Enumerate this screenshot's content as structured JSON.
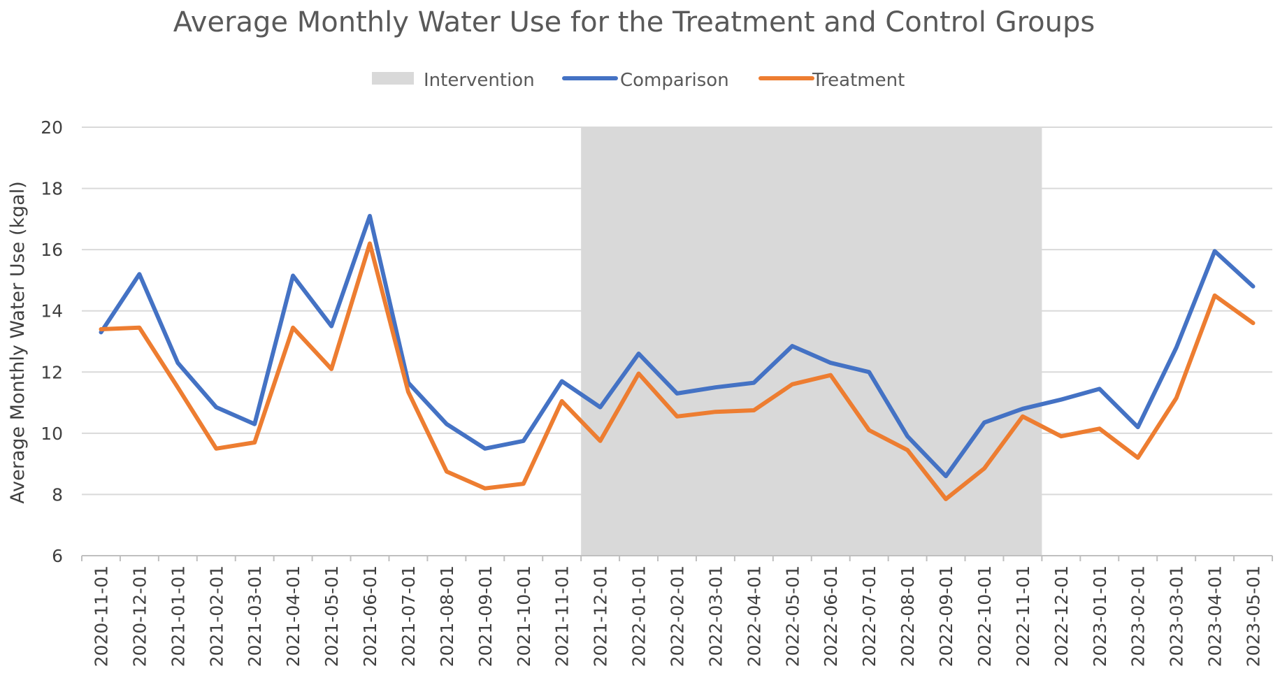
{
  "chart_data": {
    "type": "line",
    "title": "Average Monthly Water Use for the Treatment and Control Groups",
    "xlabel": "",
    "ylabel": "Average Monthly Water Use (kgal)",
    "ylim": [
      6,
      20
    ],
    "yticks": [
      6,
      8,
      10,
      12,
      14,
      16,
      18,
      20
    ],
    "grid": true,
    "legend_position": "top-center",
    "categories": [
      "2020-11-01",
      "2020-12-01",
      "2021-01-01",
      "2021-02-01",
      "2021-03-01",
      "2021-04-01",
      "2021-05-01",
      "2021-06-01",
      "2021-07-01",
      "2021-08-01",
      "2021-09-01",
      "2021-10-01",
      "2021-11-01",
      "2021-12-01",
      "2022-01-01",
      "2022-02-01",
      "2022-03-01",
      "2022-04-01",
      "2022-05-01",
      "2022-06-01",
      "2022-07-01",
      "2022-08-01",
      "2022-09-01",
      "2022-10-01",
      "2022-11-01",
      "2022-12-01",
      "2023-01-01",
      "2023-02-01",
      "2023-03-01",
      "2023-04-01",
      "2023-05-01"
    ],
    "intervention": {
      "name": "Intervention",
      "start": "2021-12-01",
      "end": "2022-11-01",
      "color": "#d9d9d9"
    },
    "series": [
      {
        "name": "Comparison",
        "color": "#4472c4",
        "values": [
          13.3,
          15.2,
          12.3,
          10.85,
          10.3,
          15.15,
          13.5,
          17.1,
          11.65,
          10.3,
          9.5,
          9.75,
          11.7,
          10.85,
          12.6,
          11.3,
          11.5,
          11.65,
          12.85,
          12.3,
          12.0,
          9.9,
          8.6,
          10.35,
          10.8,
          11.1,
          11.45,
          10.2,
          12.8,
          15.95,
          14.8
        ]
      },
      {
        "name": "Treatment",
        "color": "#ed7d31",
        "values": [
          13.4,
          13.45,
          11.5,
          9.5,
          9.7,
          13.45,
          12.1,
          16.2,
          11.35,
          8.75,
          8.2,
          8.35,
          11.05,
          9.75,
          11.95,
          10.55,
          10.7,
          10.75,
          11.6,
          11.9,
          10.1,
          9.45,
          7.85,
          8.85,
          10.55,
          9.9,
          10.15,
          9.2,
          11.15,
          14.5,
          13.6
        ]
      }
    ]
  }
}
